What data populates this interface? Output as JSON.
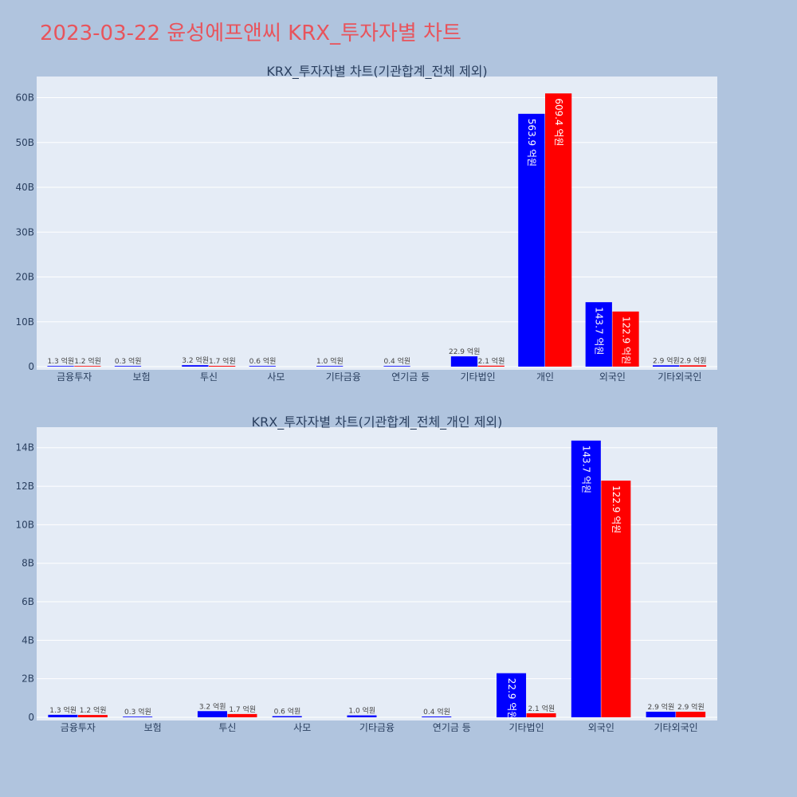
{
  "title": "2023-03-22 윤성에프앤씨 KRX_투자자별 차트",
  "colors": {
    "series_a": "#0000ff",
    "series_b": "#ff0000",
    "plot_bg": "#e5ecf6",
    "page_bg": "#b0c4de",
    "title": "#e8545c"
  },
  "chart_data": [
    {
      "type": "bar",
      "title": "KRX_투자자별 차트(기관합계_전체 제외)",
      "categories": [
        "금융투자",
        "보험",
        "투신",
        "사모",
        "기타금융",
        "연기금 등",
        "기타법인",
        "개인",
        "외국인",
        "기타외국인"
      ],
      "series": [
        {
          "values": [
            0.13,
            0.03,
            0.32,
            0.06,
            0.1,
            0.04,
            2.29,
            56.39,
            14.37,
            0.29
          ],
          "labels": [
            "1.3 억원",
            "0.3 억원",
            "3.2 억원",
            "0.6 억원",
            "1.0 억원",
            "0.4 억원",
            "22.9 억원",
            "563.9 억원",
            "143.7 억원",
            "2.9 억원"
          ]
        },
        {
          "values": [
            0.12,
            null,
            0.17,
            null,
            null,
            null,
            0.21,
            60.94,
            12.29,
            0.29
          ],
          "labels": [
            "1.2 억원",
            "",
            "1.7 억원",
            "",
            "",
            "",
            "2.1 억원",
            "609.4 억원",
            "122.9 억원",
            "2.9 억원"
          ]
        }
      ],
      "ylim": [
        0,
        64
      ],
      "yticks": [
        0,
        10,
        20,
        30,
        40,
        50,
        60
      ],
      "ytick_labels": [
        "0",
        "10B",
        "20B",
        "30B",
        "40B",
        "50B",
        "60B"
      ],
      "grid": true
    },
    {
      "type": "bar",
      "title": "KRX_투자자별 차트(기관합계_전체_개인 제외)",
      "categories": [
        "금융투자",
        "보험",
        "투신",
        "사모",
        "기타금융",
        "연기금 등",
        "기타법인",
        "외국인",
        "기타외국인"
      ],
      "series": [
        {
          "values": [
            0.13,
            0.03,
            0.32,
            0.06,
            0.1,
            0.04,
            2.29,
            14.37,
            0.29
          ],
          "labels": [
            "1.3 억원",
            "0.3 억원",
            "3.2 억원",
            "0.6 억원",
            "1.0 억원",
            "0.4 억원",
            "22.9 억원",
            "143.7 억원",
            "2.9 억원"
          ]
        },
        {
          "values": [
            0.12,
            null,
            0.17,
            null,
            null,
            null,
            0.21,
            12.29,
            0.29
          ],
          "labels": [
            "1.2 억원",
            "",
            "1.7 억원",
            "",
            "",
            "",
            "2.1 억원",
            "122.9 억원",
            "2.9 억원"
          ]
        }
      ],
      "ylim": [
        0,
        14.9
      ],
      "yticks": [
        0,
        2,
        4,
        6,
        8,
        10,
        12,
        14
      ],
      "ytick_labels": [
        "0",
        "2B",
        "4B",
        "6B",
        "8B",
        "10B",
        "12B",
        "14B"
      ],
      "grid": true
    }
  ]
}
